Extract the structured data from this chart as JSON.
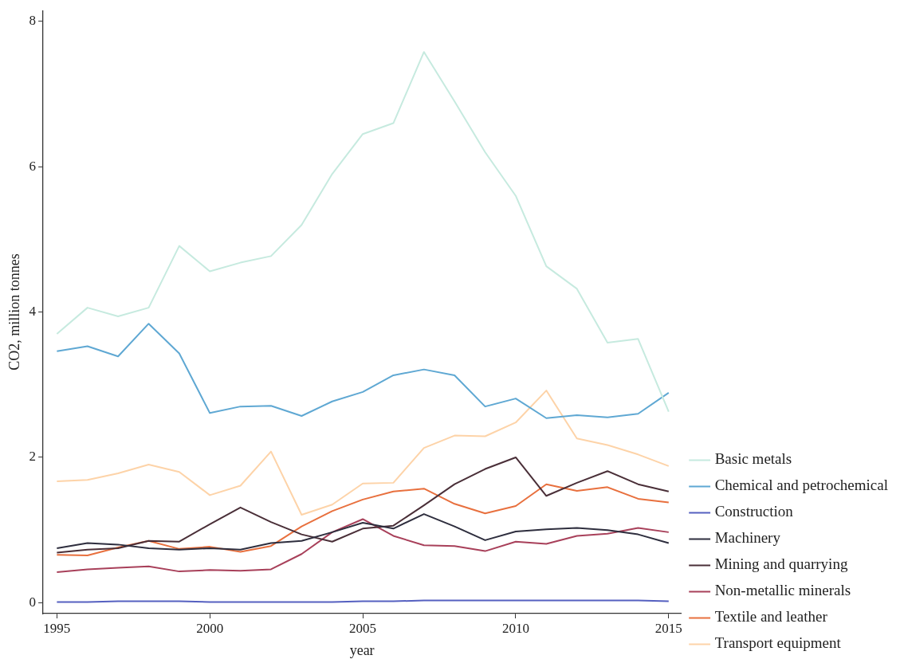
{
  "chart_data": {
    "type": "line",
    "xlabel": "year",
    "ylabel": "CO2, million tonnes",
    "x": [
      1995,
      1996,
      1997,
      1998,
      1999,
      2000,
      2001,
      2002,
      2003,
      2004,
      2005,
      2006,
      2007,
      2008,
      2009,
      2010,
      2011,
      2012,
      2013,
      2014,
      2015
    ],
    "xlim": [
      1994.55,
      2015.4
    ],
    "xticks": [
      1995,
      2000,
      2005,
      2010,
      2015
    ],
    "ylim": [
      -0.15,
      8.15
    ],
    "yticks": [
      0,
      2,
      4,
      6,
      8
    ],
    "grid": false,
    "legend": "right",
    "marker": "none",
    "line_style": "solid",
    "series": [
      {
        "name": "Basic metals",
        "color": "#c6eadf",
        "values": [
          3.7,
          4.06,
          3.94,
          4.06,
          4.91,
          4.56,
          4.68,
          4.77,
          5.2,
          5.9,
          6.45,
          6.6,
          7.58,
          6.9,
          6.2,
          5.6,
          4.63,
          4.32,
          3.58,
          3.63,
          2.63
        ]
      },
      {
        "name": "Chemical and petrochemical",
        "color": "#5fa8d3",
        "values": [
          3.46,
          3.53,
          3.39,
          3.84,
          3.43,
          2.61,
          2.7,
          2.71,
          2.57,
          2.77,
          2.9,
          3.13,
          3.21,
          3.13,
          2.7,
          2.81,
          2.54,
          2.58,
          2.55,
          2.6,
          2.89
        ]
      },
      {
        "name": "Construction",
        "color": "#5560c0",
        "values": [
          0.01,
          0.01,
          0.02,
          0.02,
          0.02,
          0.01,
          0.01,
          0.01,
          0.01,
          0.01,
          0.02,
          0.02,
          0.03,
          0.03,
          0.03,
          0.03,
          0.03,
          0.03,
          0.03,
          0.03,
          0.02
        ]
      },
      {
        "name": "Machinery",
        "color": "#2e2e3e",
        "values": [
          0.75,
          0.82,
          0.8,
          0.75,
          0.73,
          0.75,
          0.73,
          0.82,
          0.85,
          0.97,
          1.1,
          1.02,
          1.22,
          1.05,
          0.86,
          0.98,
          1.01,
          1.03,
          1.0,
          0.94,
          0.82
        ]
      },
      {
        "name": "Mining and quarrying",
        "color": "#4a2f38",
        "values": [
          0.69,
          0.73,
          0.75,
          0.85,
          0.84,
          1.08,
          1.31,
          1.11,
          0.94,
          0.84,
          1.02,
          1.06,
          1.34,
          1.63,
          1.84,
          2.0,
          1.47,
          1.65,
          1.81,
          1.63,
          1.53
        ]
      },
      {
        "name": "Non-metallic minerals",
        "color": "#a8405a",
        "values": [
          0.42,
          0.46,
          0.48,
          0.5,
          0.43,
          0.45,
          0.44,
          0.46,
          0.67,
          0.97,
          1.15,
          0.92,
          0.79,
          0.78,
          0.71,
          0.84,
          0.81,
          0.92,
          0.95,
          1.03,
          0.97
        ]
      },
      {
        "name": "Textile and leather",
        "color": "#e8703e",
        "values": [
          0.66,
          0.65,
          0.76,
          0.85,
          0.74,
          0.77,
          0.7,
          0.78,
          1.05,
          1.26,
          1.42,
          1.53,
          1.57,
          1.36,
          1.23,
          1.33,
          1.63,
          1.54,
          1.59,
          1.43,
          1.38
        ]
      },
      {
        "name": "Transport equipment",
        "color": "#fdd3a8",
        "values": [
          1.67,
          1.69,
          1.78,
          1.9,
          1.8,
          1.48,
          1.61,
          2.08,
          1.21,
          1.35,
          1.64,
          1.65,
          2.13,
          2.3,
          2.29,
          2.48,
          2.92,
          2.26,
          2.17,
          2.04,
          1.88
        ]
      }
    ]
  }
}
